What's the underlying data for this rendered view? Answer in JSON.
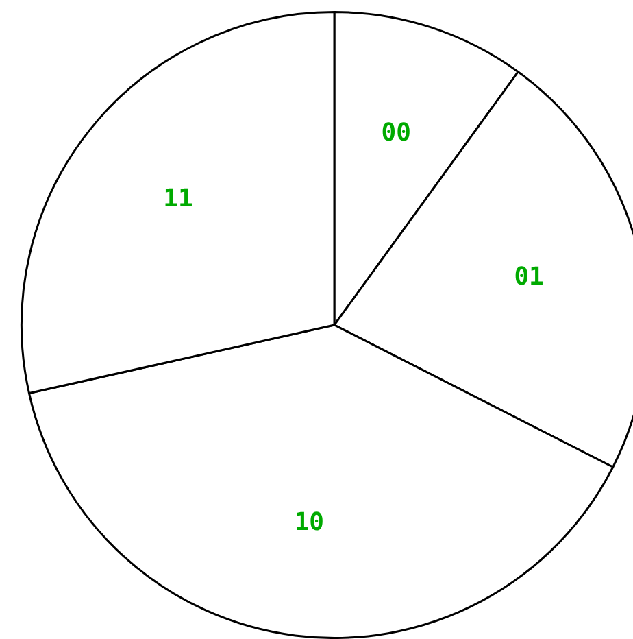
{
  "chart_data": {
    "type": "pie",
    "categories": [
      "00",
      "01",
      "10",
      "11"
    ],
    "values": [
      10,
      22.5,
      39,
      28.5
    ],
    "colors": [
      "#ffffff",
      "#ffffff",
      "#ffffff",
      "#ffffff"
    ],
    "legend": false
  }
}
